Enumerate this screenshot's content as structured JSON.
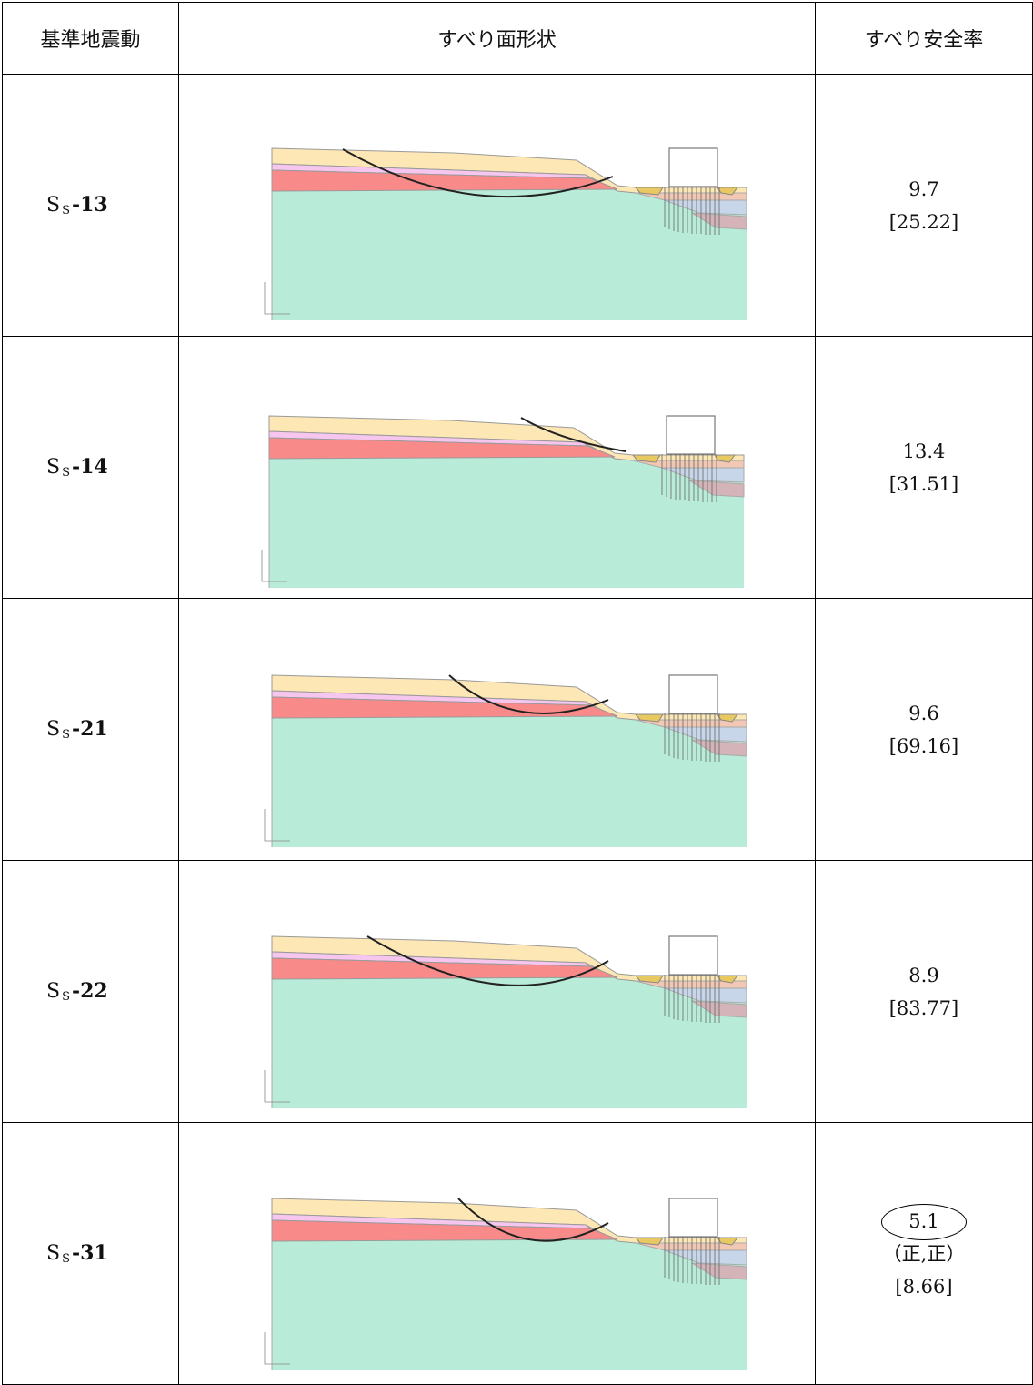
{
  "table": {
    "headers": [
      "基準地震動",
      "すべり面形状",
      "すべり安全率"
    ],
    "rows": [
      {
        "motion": {
          "main": "S",
          "sub": "S",
          "num": "-13"
        },
        "factor": "9.7",
        "bracket": "[25.22]"
      },
      {
        "motion": {
          "main": "S",
          "sub": "S",
          "num": "-14"
        },
        "factor": "13.4",
        "bracket": "[31.51]"
      },
      {
        "motion": {
          "main": "S",
          "sub": "S",
          "num": "-21"
        },
        "factor": "9.6",
        "bracket": "[69.16]"
      },
      {
        "motion": {
          "main": "S",
          "sub": "S",
          "num": "-22"
        },
        "factor": "8.9",
        "bracket": "[83.77]"
      },
      {
        "motion": {
          "main": "S",
          "sub": "S",
          "num": "-31"
        },
        "factor": "5.1",
        "note": "（正,正）",
        "bracket": "[8.66]"
      }
    ]
  }
}
